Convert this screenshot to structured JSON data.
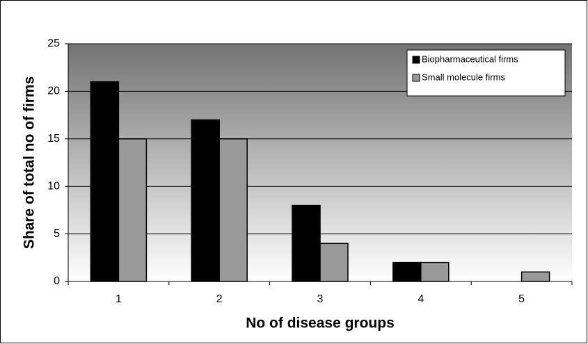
{
  "chart_data": {
    "type": "bar",
    "categories": [
      "1",
      "2",
      "3",
      "4",
      "5"
    ],
    "series": [
      {
        "name": "Biopharmaceutical firms",
        "color": "#000000",
        "values": [
          21,
          17,
          8,
          2,
          0
        ]
      },
      {
        "name": "Small molecule firms",
        "color": "#999999",
        "values": [
          15,
          15,
          4,
          2,
          1
        ]
      }
    ],
    "x_label": "No of disease groups",
    "y_label": "Share of total no of firms",
    "ylim": [
      0,
      25
    ],
    "yticks": [
      0,
      5,
      10,
      15,
      20,
      25
    ],
    "grid": true,
    "legend": "upper right"
  }
}
